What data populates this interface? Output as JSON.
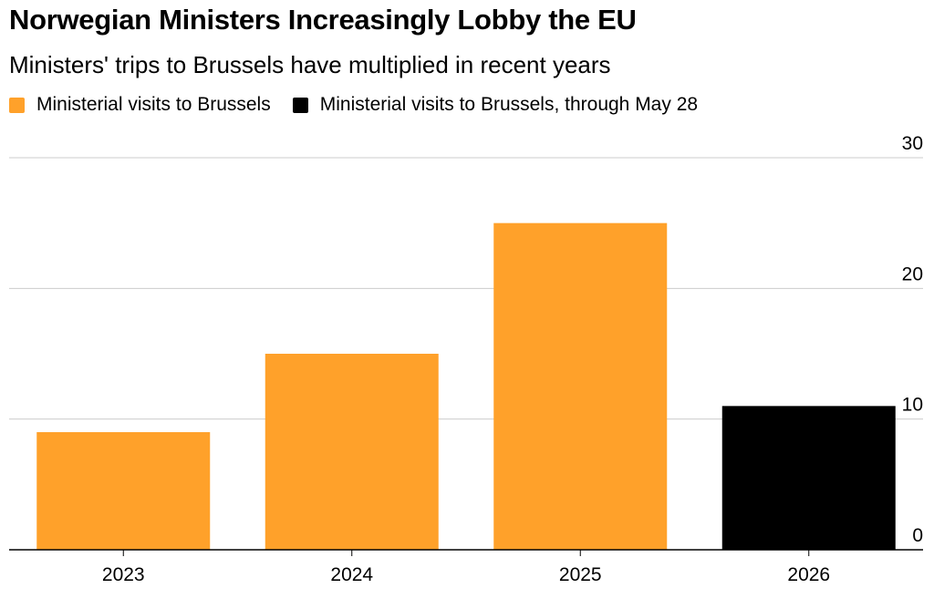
{
  "chart_data": {
    "type": "bar",
    "title": "Norwegian Ministers Increasingly Lobby the EU",
    "subtitle": "Ministers' trips to Brussels have multiplied in recent years",
    "categories": [
      "2023",
      "2024",
      "2025",
      "2026"
    ],
    "series": [
      {
        "name": "Ministerial visits to Brussels",
        "color": "#ffa12a",
        "values": [
          9,
          15,
          25,
          null
        ]
      },
      {
        "name": "Ministerial visits to Brussels, through May 28",
        "color": "#000000",
        "values": [
          null,
          null,
          null,
          11
        ]
      }
    ],
    "ylim": [
      0,
      30
    ],
    "yticks": [
      0,
      10,
      20,
      30
    ],
    "y_axis_position": "right",
    "grid": true,
    "legend_position": "top-left",
    "xlabel": "",
    "ylabel": ""
  }
}
